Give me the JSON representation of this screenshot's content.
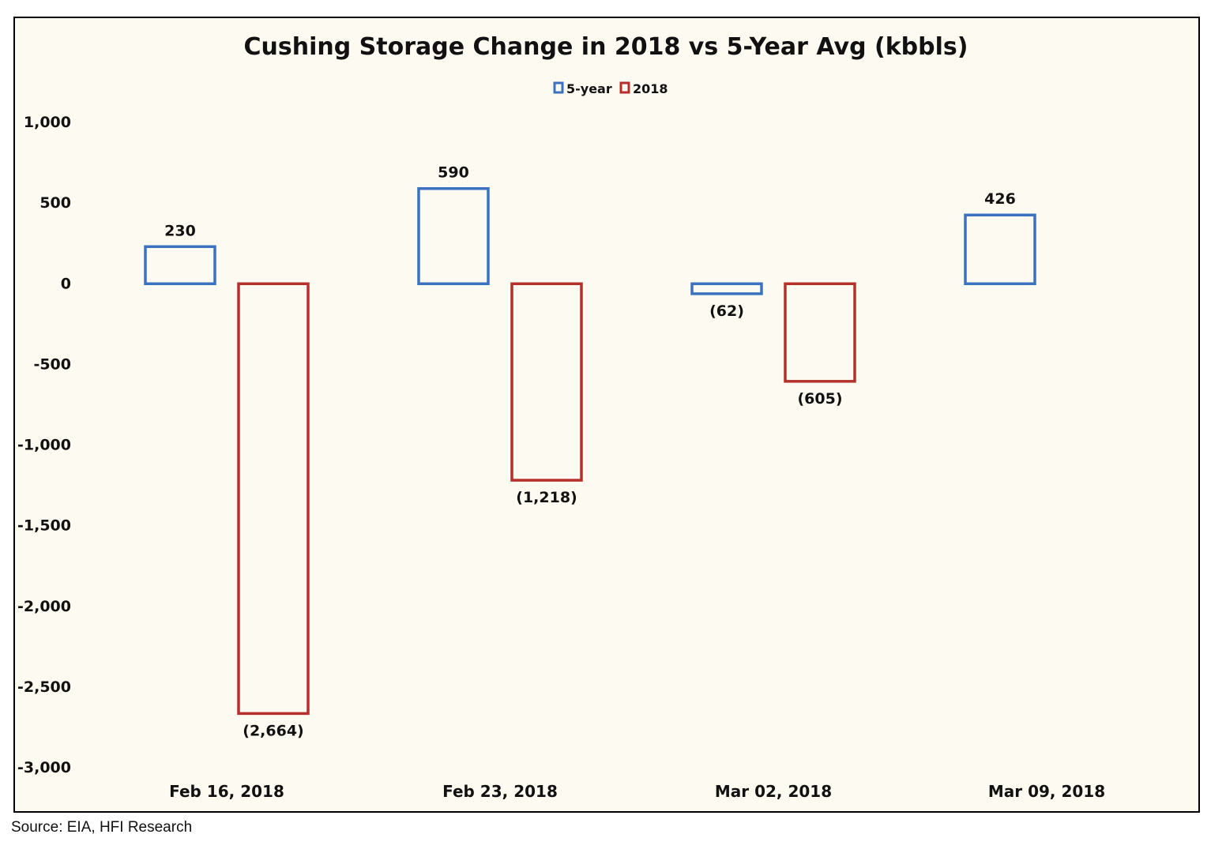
{
  "chart_data": {
    "type": "bar",
    "title": "Cushing Storage Change in 2018 vs 5-Year Avg (kbbls)",
    "xlabel": "",
    "ylabel": "",
    "categories": [
      "Feb 16, 2018",
      "Feb 23, 2018",
      "Mar 02, 2018",
      "Mar 09, 2018"
    ],
    "series": [
      {
        "name": "5-year",
        "color": "#3a72c0",
        "values": [
          230,
          590,
          -62,
          426
        ],
        "data_labels": [
          "230",
          "590",
          "(62)",
          "426"
        ]
      },
      {
        "name": "2018",
        "color": "#b5302a",
        "values": [
          -2664,
          -1218,
          -605,
          null
        ],
        "data_labels": [
          "(2,664)",
          "(1,218)",
          "(605)",
          ""
        ]
      }
    ],
    "ylim": [
      -3000,
      1000
    ],
    "yticks": [
      1000,
      500,
      0,
      -500,
      -1000,
      -1500,
      -2000,
      -2500,
      -3000
    ],
    "ytick_labels": [
      "1,000",
      "500",
      "0",
      "-500",
      "-1,000",
      "-1,500",
      "-2,000",
      "-2,500",
      "-3,000"
    ],
    "grid": false,
    "legend_position": "top-center",
    "bar_style": "outline",
    "background_color": "#fdfaf1"
  },
  "source_note": "Source: EIA, HFI Research"
}
